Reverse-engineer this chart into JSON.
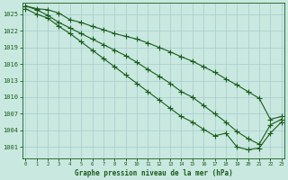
{
  "title": "Graphe pression niveau de la mer (hPa)",
  "background_color": "#c8e8e0",
  "grid_color": "#a8cccc",
  "line_color": "#1a5c1a",
  "x_ticks": [
    0,
    1,
    2,
    3,
    4,
    5,
    6,
    7,
    8,
    9,
    10,
    11,
    12,
    13,
    14,
    15,
    16,
    17,
    18,
    19,
    20,
    21,
    22,
    23
  ],
  "y_ticks": [
    1001,
    1004,
    1007,
    1010,
    1013,
    1016,
    1019,
    1022,
    1025
  ],
  "ylim": [
    999.0,
    1027.0
  ],
  "xlim": [
    -0.3,
    23.3
  ],
  "series": {
    "high": [
      1026.5,
      1026.0,
      1025.8,
      1025.2,
      1024.0,
      1023.5,
      1022.8,
      1022.2,
      1021.5,
      1021.0,
      1020.5,
      1019.8,
      1019.0,
      1018.2,
      1017.3,
      1016.5,
      1015.5,
      1014.5,
      1013.3,
      1012.2,
      1011.0,
      1009.8,
      1006.0,
      1006.5
    ],
    "mid": [
      1026.5,
      1025.8,
      1024.8,
      1023.5,
      1022.5,
      1021.5,
      1020.5,
      1019.5,
      1018.5,
      1017.5,
      1016.3,
      1015.0,
      1013.8,
      1012.5,
      1011.0,
      1010.0,
      1008.5,
      1007.0,
      1005.5,
      1003.8,
      1002.5,
      1001.5,
      1005.0,
      1006.0
    ],
    "low": [
      1026.0,
      1025.0,
      1024.3,
      1022.8,
      1021.5,
      1020.0,
      1018.5,
      1017.0,
      1015.5,
      1014.0,
      1012.5,
      1011.0,
      1009.5,
      1008.0,
      1006.5,
      1005.5,
      1004.2,
      1003.0,
      1003.5,
      1001.0,
      1000.5,
      1000.8,
      1003.5,
      1005.5
    ]
  }
}
